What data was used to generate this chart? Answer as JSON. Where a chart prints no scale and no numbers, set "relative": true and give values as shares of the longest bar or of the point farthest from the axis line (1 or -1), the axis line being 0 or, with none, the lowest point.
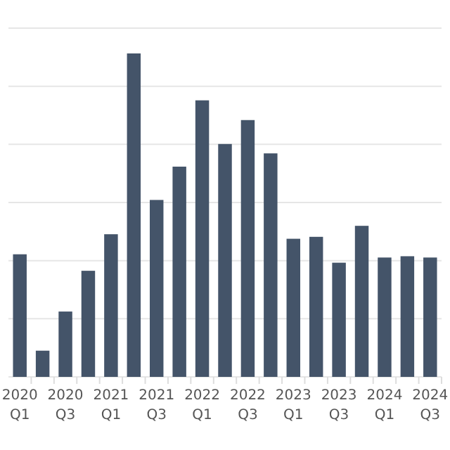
{
  "chart_data": {
    "type": "bar",
    "relative": true,
    "grid": "y",
    "color": "#445469",
    "categories": [
      "2020 Q1",
      null,
      "2020 Q3",
      null,
      "2021 Q1",
      null,
      "2021 Q3",
      null,
      "2022 Q1",
      null,
      "2022 Q3",
      null,
      "2023 Q1",
      null,
      "2023 Q3",
      null,
      "2024 Q1",
      null,
      "2024 Q3"
    ],
    "values": [
      0.379,
      0.081,
      0.202,
      0.328,
      0.441,
      1,
      0.547,
      0.65,
      0.855,
      0.72,
      0.794,
      0.691,
      0.427,
      0.433,
      0.353,
      0.467,
      0.369,
      0.373,
      0.369
    ]
  }
}
